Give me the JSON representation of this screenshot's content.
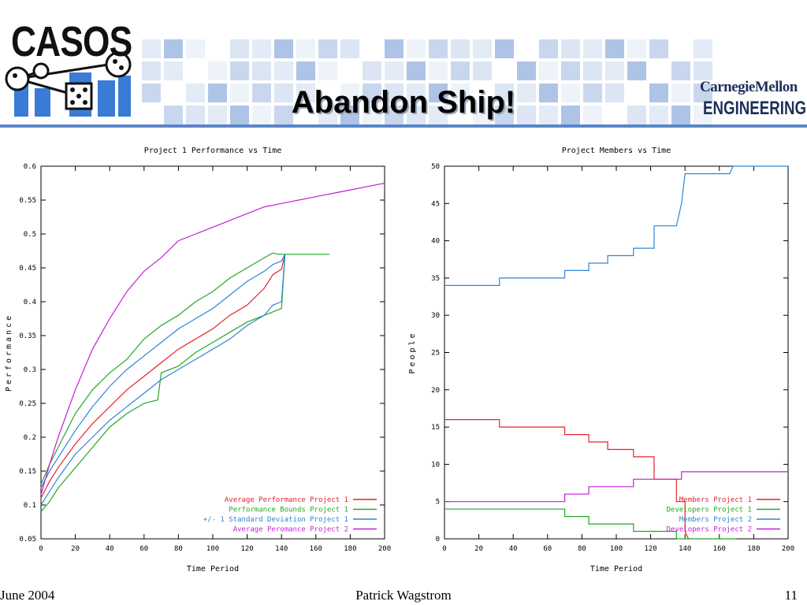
{
  "slide": {
    "title": "Abandon Ship!",
    "logo_text": "CASOS",
    "cmu_name": "CarnegieMellon",
    "cmu_engineering": "ENGINEERING",
    "footer_date": "June 2004",
    "footer_author": "Patrick Wagstrom",
    "footer_page": "11"
  },
  "chart_data": [
    {
      "type": "line",
      "title": "Project 1 Performance vs Time",
      "xlabel": "Time Period",
      "ylabel": "Performance",
      "xlim": [
        0,
        200
      ],
      "ylim": [
        0.05,
        0.6
      ],
      "xticks": [
        "0",
        "20",
        "40",
        "60",
        "80",
        "100",
        "120",
        "140",
        "160",
        "180",
        "200"
      ],
      "yticks": [
        "0.05",
        "0.1",
        "0.15",
        "0.2",
        "0.25",
        "0.3",
        "0.35",
        "0.4",
        "0.45",
        "0.5",
        "0.55",
        "0.6"
      ],
      "legend_position": "bottom-right",
      "series": [
        {
          "name": "Average Performance Project 1",
          "color": "#e8202a",
          "x": [
            0,
            5,
            10,
            20,
            30,
            40,
            50,
            60,
            70,
            80,
            90,
            100,
            110,
            120,
            130,
            135,
            140,
            142
          ],
          "y": [
            0.11,
            0.135,
            0.155,
            0.19,
            0.22,
            0.245,
            0.27,
            0.29,
            0.31,
            0.33,
            0.345,
            0.36,
            0.38,
            0.395,
            0.42,
            0.44,
            0.448,
            0.47
          ]
        },
        {
          "name": "Performance Bounds Project 1",
          "color": "#22a822",
          "x": [
            0,
            5,
            10,
            20,
            30,
            40,
            50,
            60,
            70,
            80,
            90,
            100,
            110,
            120,
            130,
            135,
            138,
            142,
            150,
            168
          ],
          "y": [
            0.13,
            0.16,
            0.185,
            0.235,
            0.27,
            0.295,
            0.315,
            0.345,
            0.365,
            0.38,
            0.4,
            0.415,
            0.435,
            0.45,
            0.465,
            0.472,
            0.47,
            0.47,
            0.47,
            0.47
          ]
        },
        {
          "name": "Performance Bounds Project 1 (lower)",
          "color": "#22a822",
          "x": [
            0,
            5,
            10,
            20,
            30,
            40,
            50,
            60,
            68,
            70,
            80,
            90,
            100,
            110,
            120,
            130,
            135,
            140,
            142
          ],
          "y": [
            0.09,
            0.105,
            0.125,
            0.155,
            0.185,
            0.215,
            0.235,
            0.25,
            0.255,
            0.295,
            0.305,
            0.325,
            0.34,
            0.355,
            0.37,
            0.38,
            0.385,
            0.39,
            0.47
          ]
        },
        {
          "name": "+/- 1 Standard Deviation Project 1",
          "color": "#2a86d8",
          "x": [
            0,
            5,
            10,
            20,
            30,
            40,
            50,
            60,
            70,
            80,
            90,
            100,
            110,
            120,
            130,
            135,
            140,
            142
          ],
          "y": [
            0.125,
            0.15,
            0.17,
            0.21,
            0.245,
            0.275,
            0.3,
            0.32,
            0.34,
            0.36,
            0.375,
            0.39,
            0.41,
            0.43,
            0.445,
            0.455,
            0.46,
            0.47
          ]
        },
        {
          "name": "+/- 1 Standard Deviation Project 1 (lower)",
          "color": "#2a86d8",
          "x": [
            0,
            5,
            10,
            20,
            30,
            40,
            50,
            60,
            70,
            80,
            90,
            100,
            110,
            120,
            130,
            135,
            140,
            142
          ],
          "y": [
            0.1,
            0.12,
            0.14,
            0.175,
            0.2,
            0.225,
            0.245,
            0.265,
            0.285,
            0.3,
            0.315,
            0.33,
            0.345,
            0.365,
            0.38,
            0.395,
            0.4,
            0.47
          ]
        },
        {
          "name": "Average Peromance Project 2",
          "color": "#c21ed6",
          "x": [
            0,
            5,
            10,
            20,
            30,
            40,
            50,
            60,
            70,
            80,
            90,
            100,
            110,
            120,
            130,
            140,
            150,
            160,
            170,
            180,
            190,
            200
          ],
          "y": [
            0.115,
            0.16,
            0.2,
            0.27,
            0.33,
            0.375,
            0.415,
            0.445,
            0.465,
            0.49,
            0.5,
            0.51,
            0.52,
            0.53,
            0.54,
            0.545,
            0.55,
            0.555,
            0.56,
            0.565,
            0.57,
            0.575
          ]
        }
      ],
      "legend": [
        {
          "label": "Average Performance Project 1",
          "color": "#e8202a"
        },
        {
          "label": "Performance Bounds Project 1",
          "color": "#22a822"
        },
        {
          "label": "+/- 1 Standard Deviation Project 1",
          "color": "#2a86d8"
        },
        {
          "label": "Average Peromance Project 2",
          "color": "#c21ed6"
        }
      ]
    },
    {
      "type": "line",
      "title": "Project Members vs Time",
      "xlabel": "Time Period",
      "ylabel": "People",
      "xlim": [
        0,
        200
      ],
      "ylim": [
        0,
        50
      ],
      "xticks": [
        "0",
        "20",
        "40",
        "60",
        "80",
        "100",
        "120",
        "140",
        "160",
        "180",
        "200"
      ],
      "yticks": [
        "0",
        "5",
        "10",
        "15",
        "20",
        "25",
        "30",
        "35",
        "40",
        "45",
        "50"
      ],
      "legend_position": "bottom-right",
      "series": [
        {
          "name": "Members Project 1",
          "color": "#e8202a",
          "x": [
            0,
            32,
            32,
            70,
            70,
            84,
            84,
            95,
            95,
            110,
            110,
            122,
            122,
            135,
            135,
            140,
            140,
            142
          ],
          "y": [
            16,
            16,
            15,
            15,
            14,
            14,
            13,
            13,
            12,
            12,
            11,
            11,
            8,
            8,
            5,
            5,
            1,
            0
          ]
        },
        {
          "name": "Developers Project 1",
          "color": "#22a822",
          "x": [
            0,
            70,
            70,
            84,
            84,
            110,
            110,
            135,
            135,
            170
          ],
          "y": [
            4,
            4,
            3,
            3,
            2,
            2,
            1,
            1,
            0,
            0
          ]
        },
        {
          "name": "Members Project 2",
          "color": "#2a86d8",
          "x": [
            0,
            32,
            32,
            70,
            70,
            84,
            84,
            95,
            95,
            110,
            110,
            122,
            122,
            135,
            138,
            140,
            145,
            160,
            166,
            168,
            200
          ],
          "y": [
            34,
            34,
            35,
            35,
            36,
            36,
            37,
            37,
            38,
            38,
            39,
            39,
            42,
            42,
            45,
            49,
            49,
            49,
            49,
            50,
            50
          ]
        },
        {
          "name": "Developers Project 2",
          "color": "#c21ed6",
          "x": [
            0,
            70,
            70,
            84,
            84,
            110,
            110,
            138,
            138,
            200
          ],
          "y": [
            5,
            5,
            6,
            6,
            7,
            7,
            8,
            8,
            9,
            9
          ]
        }
      ],
      "legend": [
        {
          "label": "Members Project 1",
          "color": "#e8202a"
        },
        {
          "label": "Developers Project 1",
          "color": "#22a822"
        },
        {
          "label": "Members Project 2",
          "color": "#2a86d8"
        },
        {
          "label": "Developers Project 2",
          "color": "#c21ed6"
        }
      ]
    }
  ]
}
